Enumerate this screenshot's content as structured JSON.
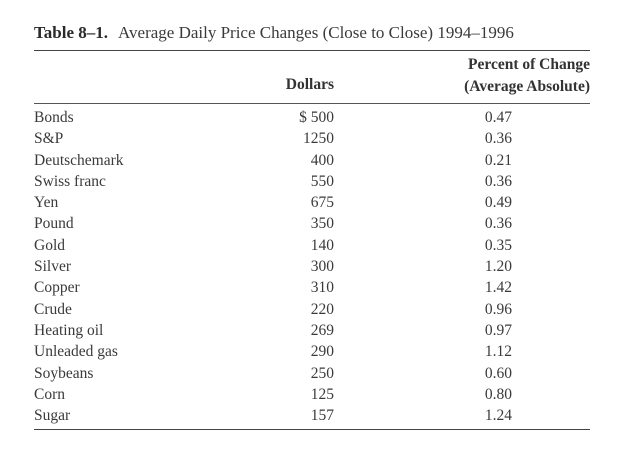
{
  "caption": {
    "label": "Table 8–1.",
    "title": "Average Daily Price Changes (Close to Close) 1994–1996"
  },
  "headers": {
    "dollars": "Dollars",
    "percent_line1": "Percent of Change",
    "percent_line2": "(Average Absolute)"
  },
  "rows": [
    {
      "name": "Bonds",
      "dollars": "$ 500",
      "percent": "0.47"
    },
    {
      "name": "S&P",
      "dollars": "1250",
      "percent": "0.36"
    },
    {
      "name": "Deutschemark",
      "dollars": "400",
      "percent": "0.21"
    },
    {
      "name": "Swiss franc",
      "dollars": "550",
      "percent": "0.36"
    },
    {
      "name": "Yen",
      "dollars": "675",
      "percent": "0.49"
    },
    {
      "name": "Pound",
      "dollars": "350",
      "percent": "0.36"
    },
    {
      "name": "Gold",
      "dollars": "140",
      "percent": "0.35"
    },
    {
      "name": "Silver",
      "dollars": "300",
      "percent": "1.20"
    },
    {
      "name": "Copper",
      "dollars": "310",
      "percent": "1.42"
    },
    {
      "name": "Crude",
      "dollars": "220",
      "percent": "0.96"
    },
    {
      "name": "Heating oil",
      "dollars": "269",
      "percent": "0.97"
    },
    {
      "name": "Unleaded gas",
      "dollars": "290",
      "percent": "1.12"
    },
    {
      "name": "Soybeans",
      "dollars": "250",
      "percent": "0.60"
    },
    {
      "name": "Corn",
      "dollars": "125",
      "percent": "0.80"
    },
    {
      "name": "Sugar",
      "dollars": "157",
      "percent": "1.24"
    }
  ]
}
